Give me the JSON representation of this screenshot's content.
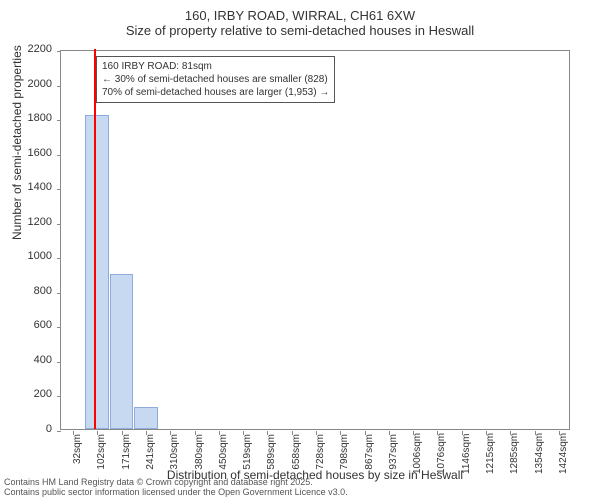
{
  "title": {
    "line1": "160, IRBY ROAD, WIRRAL, CH61 6XW",
    "line2": "Size of property relative to semi-detached houses in Heswall"
  },
  "chart": {
    "type": "histogram",
    "ylabel": "Number of semi-detached properties",
    "xlabel": "Distribution of semi-detached houses by size in Heswall",
    "ylim": [
      0,
      2200
    ],
    "ytick_step": 200,
    "yticks": [
      0,
      200,
      400,
      600,
      800,
      1000,
      1200,
      1400,
      1600,
      1800,
      2000,
      2200
    ],
    "xtick_labels": [
      "32sqm",
      "102sqm",
      "171sqm",
      "241sqm",
      "310sqm",
      "380sqm",
      "450sqm",
      "519sqm",
      "589sqm",
      "658sqm",
      "728sqm",
      "798sqm",
      "867sqm",
      "937sqm",
      "1006sqm",
      "1076sqm",
      "1146sqm",
      "1215sqm",
      "1285sqm",
      "1354sqm",
      "1424sqm"
    ],
    "bars": {
      "count": 21,
      "values": [
        0,
        1820,
        900,
        130,
        0,
        0,
        0,
        0,
        0,
        0,
        0,
        0,
        0,
        0,
        0,
        0,
        0,
        0,
        0,
        0,
        0
      ],
      "fill_color": "#c6d9f1",
      "border_color": "#8faadc",
      "bar_width_ratio": 0.98
    },
    "marker": {
      "bin_index": 1,
      "offset_ratio": 0.4,
      "color": "#ff0000"
    },
    "plot_border_color": "#888888",
    "background_color": "#ffffff",
    "label_fontsize": 12,
    "tick_fontsize": 11
  },
  "annotation": {
    "line1": "160 IRBY ROAD: 81sqm",
    "line2": "← 30% of semi-detached houses are smaller (828)",
    "line3": "70% of semi-detached houses are larger (1,953) →"
  },
  "footer": {
    "line1": "Contains HM Land Registry data © Crown copyright and database right 2025.",
    "line2": "Contains public sector information licensed under the Open Government Licence v3.0."
  }
}
